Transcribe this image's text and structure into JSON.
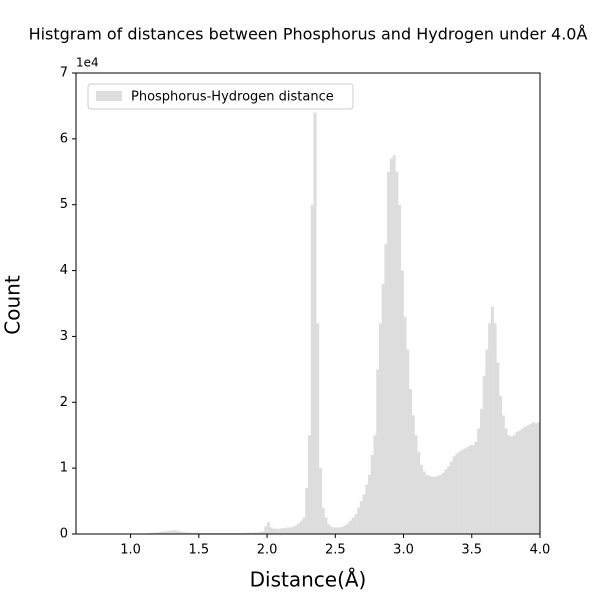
{
  "chart_data": {
    "type": "histogram",
    "title": "Histgram of distances between Phosphorus and Hydrogen under 4.0Å",
    "x_label": "Distance(Å)",
    "y_label": "Count",
    "y_offset_label": "1e4",
    "legend_position": "upper left",
    "series": [
      {
        "name": "Phosphorus-Hydrogen distance",
        "color": "#dddddd",
        "bins": [
          0.6,
          0.62,
          0.64,
          0.66,
          0.68,
          0.7,
          0.72,
          0.74,
          0.76,
          0.78,
          0.8,
          0.82,
          0.84,
          0.86,
          0.88,
          0.9,
          0.92,
          0.94,
          0.96,
          0.98,
          1.0,
          1.02,
          1.04,
          1.06,
          1.08,
          1.1,
          1.12,
          1.14,
          1.16,
          1.18,
          1.2,
          1.22,
          1.24,
          1.26,
          1.28,
          1.3,
          1.32,
          1.34,
          1.36,
          1.38,
          1.4,
          1.42,
          1.44,
          1.46,
          1.48,
          1.5,
          1.52,
          1.54,
          1.56,
          1.58,
          1.6,
          1.62,
          1.64,
          1.66,
          1.68,
          1.7,
          1.72,
          1.74,
          1.76,
          1.78,
          1.8,
          1.82,
          1.84,
          1.86,
          1.88,
          1.9,
          1.92,
          1.94,
          1.96,
          1.98,
          2.0,
          2.02,
          2.04,
          2.06,
          2.08,
          2.1,
          2.12,
          2.14,
          2.16,
          2.18,
          2.2,
          2.22,
          2.24,
          2.26,
          2.28,
          2.3,
          2.32,
          2.34,
          2.36,
          2.38,
          2.4,
          2.42,
          2.44,
          2.46,
          2.48,
          2.5,
          2.52,
          2.54,
          2.56,
          2.58,
          2.6,
          2.62,
          2.64,
          2.66,
          2.68,
          2.7,
          2.72,
          2.74,
          2.76,
          2.78,
          2.8,
          2.82,
          2.84,
          2.86,
          2.88,
          2.9,
          2.92,
          2.94,
          2.96,
          2.98,
          3.0,
          3.02,
          3.04,
          3.06,
          3.08,
          3.1,
          3.12,
          3.14,
          3.16,
          3.18,
          3.2,
          3.22,
          3.24,
          3.26,
          3.28,
          3.3,
          3.32,
          3.34,
          3.36,
          3.38,
          3.4,
          3.42,
          3.44,
          3.46,
          3.48,
          3.5,
          3.52,
          3.54,
          3.56,
          3.58,
          3.6,
          3.62,
          3.64,
          3.66,
          3.68,
          3.7,
          3.72,
          3.74,
          3.76,
          3.78,
          3.8,
          3.82,
          3.84,
          3.86,
          3.88,
          3.9,
          3.92,
          3.94,
          3.96,
          3.98,
          4.0
        ],
        "values": [
          0,
          0,
          0,
          0,
          0,
          0,
          0,
          0,
          0,
          0,
          0,
          0,
          0,
          0,
          0,
          20,
          20,
          30,
          30,
          40,
          40,
          50,
          50,
          60,
          60,
          80,
          100,
          150,
          200,
          250,
          300,
          350,
          400,
          450,
          500,
          550,
          600,
          450,
          350,
          300,
          250,
          250,
          200,
          200,
          200,
          150,
          150,
          150,
          150,
          150,
          150,
          150,
          150,
          150,
          150,
          150,
          150,
          150,
          150,
          150,
          150,
          150,
          200,
          200,
          200,
          250,
          250,
          300,
          400,
          1200,
          1800,
          1000,
          800,
          800,
          800,
          900,
          900,
          1000,
          1000,
          1100,
          1300,
          1600,
          2000,
          2500,
          7000,
          15000,
          50000,
          64000,
          32000,
          10000,
          4000,
          2500,
          1500,
          1100,
          1000,
          1000,
          1000,
          1100,
          1300,
          1600,
          2000,
          2500,
          3000,
          4000,
          5000,
          6000,
          7500,
          9000,
          12000,
          15000,
          25000,
          32000,
          38000,
          44000,
          55000,
          57000,
          57500,
          55000,
          50000,
          40000,
          33000,
          28000,
          22000,
          18000,
          15000,
          12500,
          10500,
          9500,
          9000,
          8800,
          8700,
          8700,
          8800,
          9000,
          9300,
          9800,
          10300,
          11000,
          11800,
          12200,
          12500,
          12800,
          13000,
          13200,
          13500,
          13500,
          14000,
          16000,
          19000,
          24000,
          28000,
          32000,
          34500,
          32000,
          26000,
          21000,
          18000,
          16000,
          15000,
          14800,
          15000,
          15500,
          15700,
          16000,
          16300,
          16500,
          16700,
          17000,
          16800,
          17000
        ]
      }
    ],
    "xlim": [
      0.6,
      4.0
    ],
    "xticks": [
      {
        "value": 1,
        "label": "1.0"
      },
      1.5,
      {
        "value": 2,
        "label": "2.0"
      },
      2.5,
      {
        "value": 3,
        "label": "3.0"
      },
      3.5,
      {
        "value": 4,
        "label": "4.0"
      }
    ],
    "ylim": [
      0,
      70000
    ],
    "yticks": [
      {
        "value": 0,
        "label": "0"
      },
      {
        "value": 10000,
        "label": "1"
      },
      {
        "value": 20000,
        "label": "2"
      },
      {
        "value": 30000,
        "label": "3"
      },
      {
        "value": 40000,
        "label": "4"
      },
      {
        "value": 50000,
        "label": "5"
      },
      {
        "value": 60000,
        "label": "6"
      },
      {
        "value": 70000,
        "label": "7"
      }
    ]
  }
}
